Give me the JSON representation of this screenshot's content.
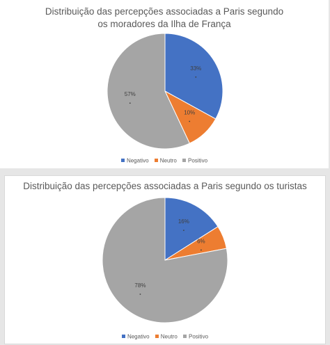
{
  "colors": {
    "Negativo": "#4472c4",
    "Neutro": "#ed7d31",
    "Positivo": "#a5a5a5"
  },
  "chart_data": [
    {
      "type": "pie",
      "title_lines": [
        "Distribuição das percepções associadas a Paris segundo",
        "os moradores da Ilha de França"
      ],
      "categories": [
        "Negativo",
        "Neutro",
        "Positivo"
      ],
      "values": [
        33,
        10,
        57
      ],
      "labels": [
        "33%",
        "10%",
        "57%"
      ],
      "legend": "bottom"
    },
    {
      "type": "pie",
      "title_lines": [
        "Distribuição das percepções associadas a Paris segundo os turistas"
      ],
      "categories": [
        "Negativo",
        "Neutro",
        "Positivo"
      ],
      "values": [
        16,
        6,
        78
      ],
      "labels": [
        "16%",
        "6%",
        "78%"
      ],
      "legend": "bottom"
    }
  ]
}
